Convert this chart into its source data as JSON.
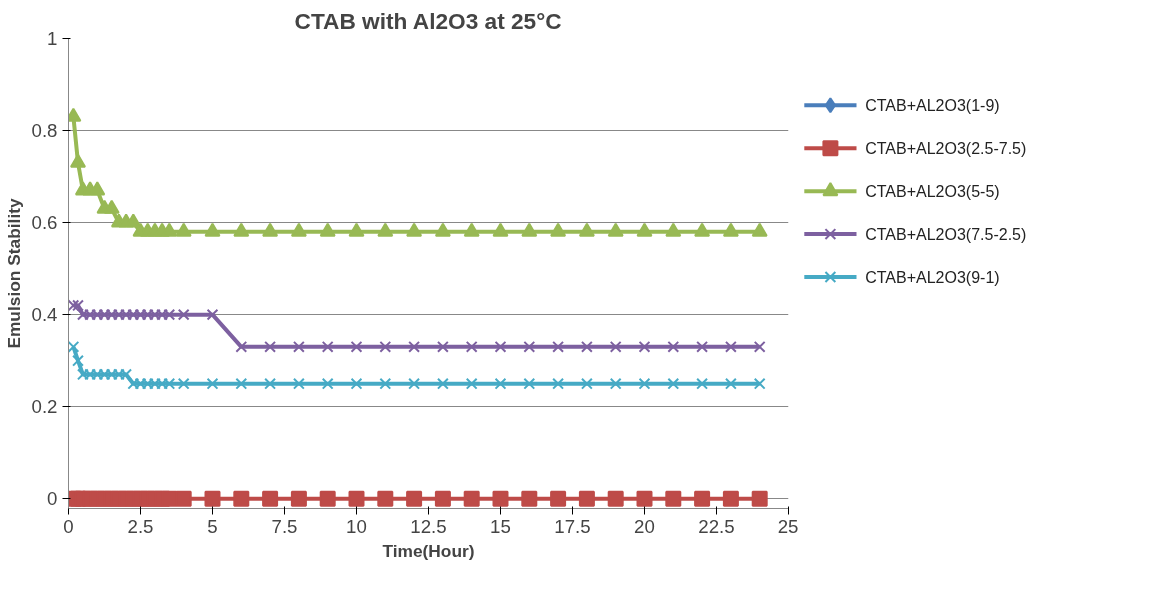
{
  "chart_data": {
    "type": "line",
    "title": "CTAB with Al2O3 at 25°C",
    "xlabel": "Time(Hour)",
    "ylabel": "Emulsion Stability",
    "x": [
      0.17,
      0.33,
      0.5,
      0.75,
      1,
      1.25,
      1.5,
      1.75,
      2,
      2.25,
      2.5,
      2.75,
      3,
      3.25,
      3.5,
      4,
      5,
      6,
      7,
      8,
      9,
      10,
      11,
      12,
      13,
      14,
      15,
      16,
      17,
      18,
      19,
      20,
      21,
      22,
      23,
      24
    ],
    "series": [
      {
        "name": "CTAB+AL2O3(1-9)",
        "color": "#4a7ebb",
        "marker": "diamond",
        "values": [
          null,
          null,
          null,
          null,
          null,
          null,
          null,
          null,
          null,
          null,
          null,
          null,
          null,
          null,
          null,
          null,
          null,
          null,
          null,
          null,
          null,
          null,
          null,
          null,
          null,
          null,
          null,
          null,
          null,
          null,
          null,
          null,
          null,
          null,
          null,
          null
        ]
      },
      {
        "name": "CTAB+AL2O3(2.5-7.5)",
        "color": "#be4b48",
        "marker": "square",
        "values": [
          0,
          0,
          0,
          0,
          0,
          0,
          0,
          0,
          0,
          0,
          0,
          0,
          0,
          0,
          0,
          0,
          0,
          0,
          0,
          0,
          0,
          0,
          0,
          0,
          0,
          0,
          0,
          0,
          0,
          0,
          0,
          0,
          0,
          0,
          0,
          0
        ]
      },
      {
        "name": "CTAB+AL2O3(5-5)",
        "color": "#98b954",
        "marker": "triangle",
        "values": [
          0.83,
          0.73,
          0.67,
          0.67,
          0.67,
          0.63,
          0.63,
          0.6,
          0.6,
          0.6,
          0.58,
          0.58,
          0.58,
          0.58,
          0.58,
          0.58,
          0.58,
          0.58,
          0.58,
          0.58,
          0.58,
          0.58,
          0.58,
          0.58,
          0.58,
          0.58,
          0.58,
          0.58,
          0.58,
          0.58,
          0.58,
          0.58,
          0.58,
          0.58,
          0.58,
          0.58
        ]
      },
      {
        "name": "CTAB+AL2O3(7.5-2.5)",
        "color": "#7d60a0",
        "marker": "cross",
        "values": [
          0.42,
          0.42,
          0.4,
          0.4,
          0.4,
          0.4,
          0.4,
          0.4,
          0.4,
          0.4,
          0.4,
          0.4,
          0.4,
          0.4,
          0.4,
          0.4,
          0.4,
          0.33,
          0.33,
          0.33,
          0.33,
          0.33,
          0.33,
          0.33,
          0.33,
          0.33,
          0.33,
          0.33,
          0.33,
          0.33,
          0.33,
          0.33,
          0.33,
          0.33,
          0.33,
          0.33
        ]
      },
      {
        "name": "CTAB+AL2O3(9-1)",
        "color": "#46aac5",
        "marker": "cross",
        "values": [
          0.33,
          0.3,
          0.27,
          0.27,
          0.27,
          0.27,
          0.27,
          0.27,
          0.27,
          0.25,
          0.25,
          0.25,
          0.25,
          0.25,
          0.25,
          0.25,
          0.25,
          0.25,
          0.25,
          0.25,
          0.25,
          0.25,
          0.25,
          0.25,
          0.25,
          0.25,
          0.25,
          0.25,
          0.25,
          0.25,
          0.25,
          0.25,
          0.25,
          0.25,
          0.25,
          0.25
        ]
      }
    ],
    "xlim": [
      0,
      25
    ],
    "xticks": [
      0,
      2.5,
      5,
      7.5,
      10,
      12.5,
      15,
      17.5,
      20,
      22.5,
      25
    ],
    "ylim": [
      0,
      1
    ],
    "yticks": [
      0,
      0.2,
      0.4,
      0.6,
      0.8,
      1
    ],
    "grid": "y",
    "legend": "right",
    "line_style": "solid"
  }
}
